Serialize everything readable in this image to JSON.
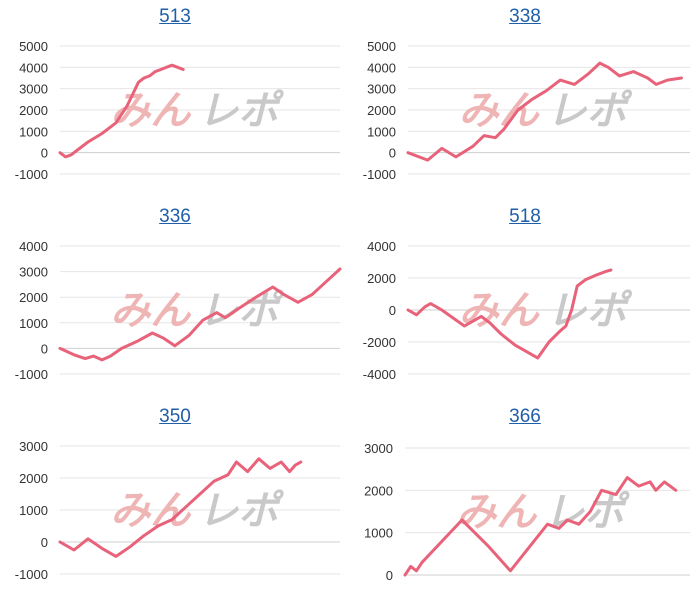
{
  "watermark": {
    "part1": "みん",
    "part2": "レポ",
    "color1": "#efb5b5",
    "color2": "#c9c9c9"
  },
  "line_color": "#e8637a",
  "title_color": "#1f5fa8",
  "chart_data": [
    {
      "type": "line",
      "title": "513",
      "ylim": [
        -1000,
        5000
      ],
      "yticks": [
        -1000,
        0,
        1000,
        2000,
        3000,
        4000,
        5000
      ],
      "x": [
        0,
        0.02,
        0.04,
        0.06,
        0.1,
        0.15,
        0.2,
        0.24,
        0.28,
        0.3,
        0.32,
        0.34,
        0.36,
        0.38,
        0.4,
        0.42,
        0.44
      ],
      "values": [
        0,
        -200,
        -100,
        100,
        500,
        900,
        1400,
        2200,
        3300,
        3500,
        3600,
        3800,
        3900,
        4000,
        4100,
        4000,
        3900
      ]
    },
    {
      "type": "line",
      "title": "338",
      "ylim": [
        -1000,
        5000
      ],
      "yticks": [
        -1000,
        0,
        1000,
        2000,
        3000,
        4000,
        5000
      ],
      "x": [
        0,
        0.07,
        0.12,
        0.17,
        0.23,
        0.27,
        0.31,
        0.34,
        0.39,
        0.44,
        0.49,
        0.54,
        0.59,
        0.64,
        0.68,
        0.71,
        0.75,
        0.8,
        0.85,
        0.88,
        0.92,
        0.97
      ],
      "values": [
        0,
        -350,
        200,
        -200,
        300,
        800,
        700,
        1100,
        2000,
        2500,
        2900,
        3400,
        3200,
        3700,
        4200,
        4000,
        3600,
        3800,
        3500,
        3200,
        3400,
        3500
      ]
    },
    {
      "type": "line",
      "title": "336",
      "ylim": [
        -1000,
        4000
      ],
      "yticks": [
        -1000,
        0,
        1000,
        2000,
        3000,
        4000
      ],
      "x": [
        0,
        0.05,
        0.09,
        0.12,
        0.15,
        0.18,
        0.22,
        0.28,
        0.33,
        0.37,
        0.41,
        0.46,
        0.51,
        0.56,
        0.59,
        0.63,
        0.7,
        0.76,
        0.8,
        0.85,
        0.9,
        0.95,
        1.0
      ],
      "values": [
        0,
        -250,
        -400,
        -300,
        -450,
        -300,
        0,
        300,
        600,
        400,
        100,
        500,
        1100,
        1400,
        1200,
        1500,
        2000,
        2400,
        2100,
        1800,
        2100,
        2600,
        3100
      ]
    },
    {
      "type": "line",
      "title": "518",
      "ylim": [
        -4000,
        4000
      ],
      "yticks": [
        -4000,
        -2000,
        0,
        2000,
        4000
      ],
      "x": [
        0,
        0.03,
        0.06,
        0.08,
        0.12,
        0.16,
        0.2,
        0.23,
        0.26,
        0.29,
        0.33,
        0.38,
        0.43,
        0.46,
        0.5,
        0.54,
        0.56,
        0.58,
        0.6,
        0.63,
        0.67,
        0.7,
        0.72
      ],
      "values": [
        0,
        -300,
        200,
        400,
        0,
        -500,
        -1000,
        -700,
        -400,
        -800,
        -1500,
        -2200,
        -2700,
        -3000,
        -2000,
        -1300,
        -1000,
        0,
        1500,
        1900,
        2200,
        2400,
        2500
      ]
    },
    {
      "type": "line",
      "title": "350",
      "ylim": [
        -1000,
        3000
      ],
      "yticks": [
        -1000,
        0,
        1000,
        2000,
        3000
      ],
      "x": [
        0,
        0.05,
        0.1,
        0.15,
        0.2,
        0.25,
        0.3,
        0.35,
        0.4,
        0.45,
        0.5,
        0.55,
        0.6,
        0.63,
        0.67,
        0.71,
        0.75,
        0.79,
        0.82,
        0.84,
        0.86
      ],
      "values": [
        0,
        -250,
        100,
        -200,
        -450,
        -150,
        200,
        500,
        700,
        1100,
        1500,
        1900,
        2100,
        2500,
        2200,
        2600,
        2300,
        2500,
        2200,
        2400,
        2500
      ]
    },
    {
      "type": "line",
      "title": "366",
      "ylim": [
        0,
        3000
      ],
      "yticks": [
        0,
        1000,
        2000,
        3000
      ],
      "x": [
        0,
        0.02,
        0.04,
        0.06,
        0.2,
        0.29,
        0.37,
        0.5,
        0.54,
        0.57,
        0.61,
        0.65,
        0.69,
        0.74,
        0.78,
        0.82,
        0.86,
        0.88,
        0.91,
        0.93,
        0.95
      ],
      "values": [
        0,
        200,
        100,
        300,
        1300,
        700,
        100,
        1200,
        1100,
        1300,
        1200,
        1500,
        2000,
        1900,
        2300,
        2100,
        2200,
        2000,
        2200,
        2100,
        2000
      ]
    }
  ]
}
